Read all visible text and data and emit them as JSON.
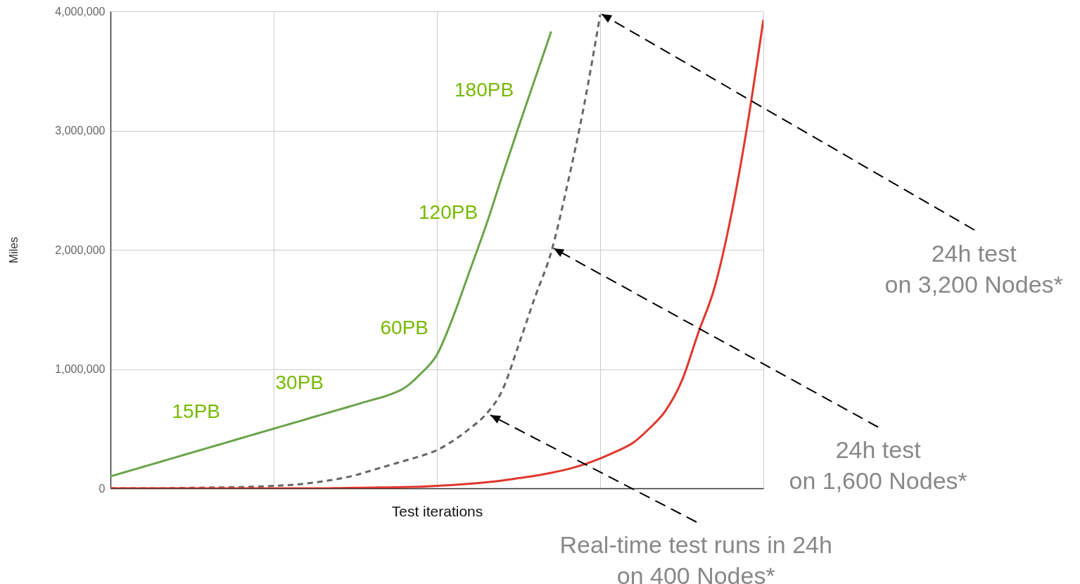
{
  "chart_data": {
    "type": "line",
    "xlabel": "Test iterations",
    "ylabel": "Miles",
    "categories": [
      null,
      null,
      null,
      null,
      null,
      null,
      null,
      null,
      null,
      null,
      null,
      null,
      null,
      null,
      null,
      null,
      null,
      null,
      null,
      null,
      null,
      null,
      null,
      null,
      null,
      null,
      null,
      null,
      null,
      null,
      null,
      null,
      null,
      null,
      null,
      null,
      null,
      null,
      null,
      null,
      null
    ],
    "series": [
      {
        "color": "#6ba34a",
        "line_style": "solid",
        "values": [
          100000,
          140000,
          180000,
          220000,
          260000,
          300000,
          340000,
          380000,
          420000,
          460000,
          500000,
          540000,
          580000,
          620000,
          660000,
          700000,
          740000,
          780000,
          840000,
          960000,
          1120000,
          1440000,
          1820000,
          2200000,
          2620000,
          3030000,
          3430000,
          3830000,
          null,
          null,
          null,
          null,
          null,
          null,
          null,
          null,
          null,
          null,
          null,
          null,
          null
        ]
      },
      {
        "color": "#666666",
        "line_style": "dashed",
        "values": [
          0,
          0,
          0,
          0,
          2000,
          4000,
          6000,
          8000,
          10000,
          15000,
          20000,
          28000,
          40000,
          58000,
          80000,
          110000,
          150000,
          190000,
          230000,
          270000,
          320000,
          400000,
          500000,
          620000,
          820000,
          1200000,
          1600000,
          1980000,
          2550000,
          3200000,
          3970000,
          null,
          null,
          null,
          null,
          null,
          null,
          null,
          null,
          null,
          null
        ]
      },
      {
        "color": "#e0362c",
        "line_style": "solid",
        "values": [
          0,
          0,
          0,
          0,
          0,
          0,
          0,
          0,
          0,
          0,
          0,
          0,
          0,
          0,
          2000,
          4000,
          6000,
          8000,
          10000,
          14000,
          20000,
          28000,
          38000,
          50000,
          65000,
          85000,
          105000,
          130000,
          160000,
          200000,
          250000,
          310000,
          380000,
          500000,
          650000,
          900000,
          1300000,
          1680000,
          2270000,
          3030000,
          3930000
        ]
      }
    ],
    "ylim": [
      0,
      4000000
    ],
    "yticks": [
      0,
      {
        "value": 1000000,
        "label": "1,000,000"
      },
      {
        "value": 2000000,
        "label": "2,000,000"
      },
      {
        "value": 3000000,
        "label": "3,000,000"
      },
      {
        "value": 4000000,
        "label": "4,000,000"
      }
    ],
    "grid": true,
    "annotations": [
      "15PB",
      "30PB",
      "60PB",
      "120PB",
      "180PB",
      "24h test\non 3,200 Nodes*",
      "24h test\non 1,600 Nodes*",
      "Real-time test runs in 24h\non 400 Nodes*"
    ]
  }
}
